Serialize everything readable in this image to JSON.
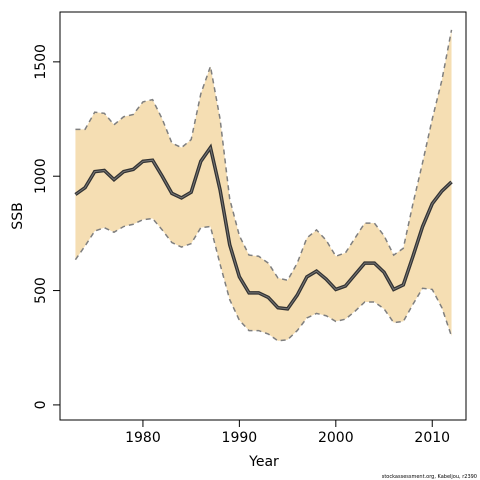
{
  "chart_data": {
    "type": "line",
    "ylabel": "SSB",
    "xlabel": "Year",
    "footnote": "stockassessment.org, Kabeljou, r2390",
    "x": [
      1973,
      1974,
      1975,
      1976,
      1977,
      1978,
      1979,
      1980,
      1981,
      1982,
      1983,
      1984,
      1985,
      1986,
      1987,
      1988,
      1989,
      1990,
      1991,
      1992,
      1993,
      1994,
      1995,
      1996,
      1997,
      1998,
      1999,
      2000,
      2001,
      2002,
      2003,
      2004,
      2005,
      2006,
      2007,
      2008,
      2009,
      2010,
      2011,
      2012
    ],
    "values": [
      920,
      950,
      1020,
      1025,
      985,
      1020,
      1030,
      1065,
      1070,
      1000,
      925,
      905,
      930,
      1065,
      1125,
      940,
      700,
      560,
      490,
      490,
      470,
      425,
      420,
      480,
      560,
      585,
      550,
      505,
      520,
      570,
      620,
      620,
      580,
      505,
      525,
      650,
      780,
      880,
      935,
      975
    ],
    "upper": [
      1205,
      1205,
      1280,
      1275,
      1225,
      1260,
      1270,
      1325,
      1335,
      1250,
      1145,
      1125,
      1160,
      1360,
      1480,
      1250,
      900,
      740,
      655,
      650,
      620,
      555,
      545,
      620,
      730,
      765,
      720,
      650,
      665,
      730,
      795,
      795,
      740,
      655,
      685,
      880,
      1060,
      1250,
      1420,
      1640
    ],
    "lower": [
      635,
      695,
      760,
      775,
      755,
      780,
      790,
      810,
      815,
      765,
      710,
      690,
      705,
      775,
      780,
      615,
      460,
      370,
      325,
      325,
      310,
      280,
      285,
      325,
      380,
      400,
      390,
      365,
      375,
      410,
      450,
      450,
      420,
      360,
      365,
      440,
      510,
      505,
      425,
      300
    ],
    "color": "#333333",
    "band_color": "#f5deb3",
    "band_line_color": "#7f7f7f",
    "xlim": [
      1971.4,
      2013.5
    ],
    "ylim": [
      -66,
      1718
    ],
    "xticks": [
      1980,
      1990,
      2000,
      2010
    ],
    "yticks": [
      0,
      500,
      1000,
      1500
    ]
  }
}
